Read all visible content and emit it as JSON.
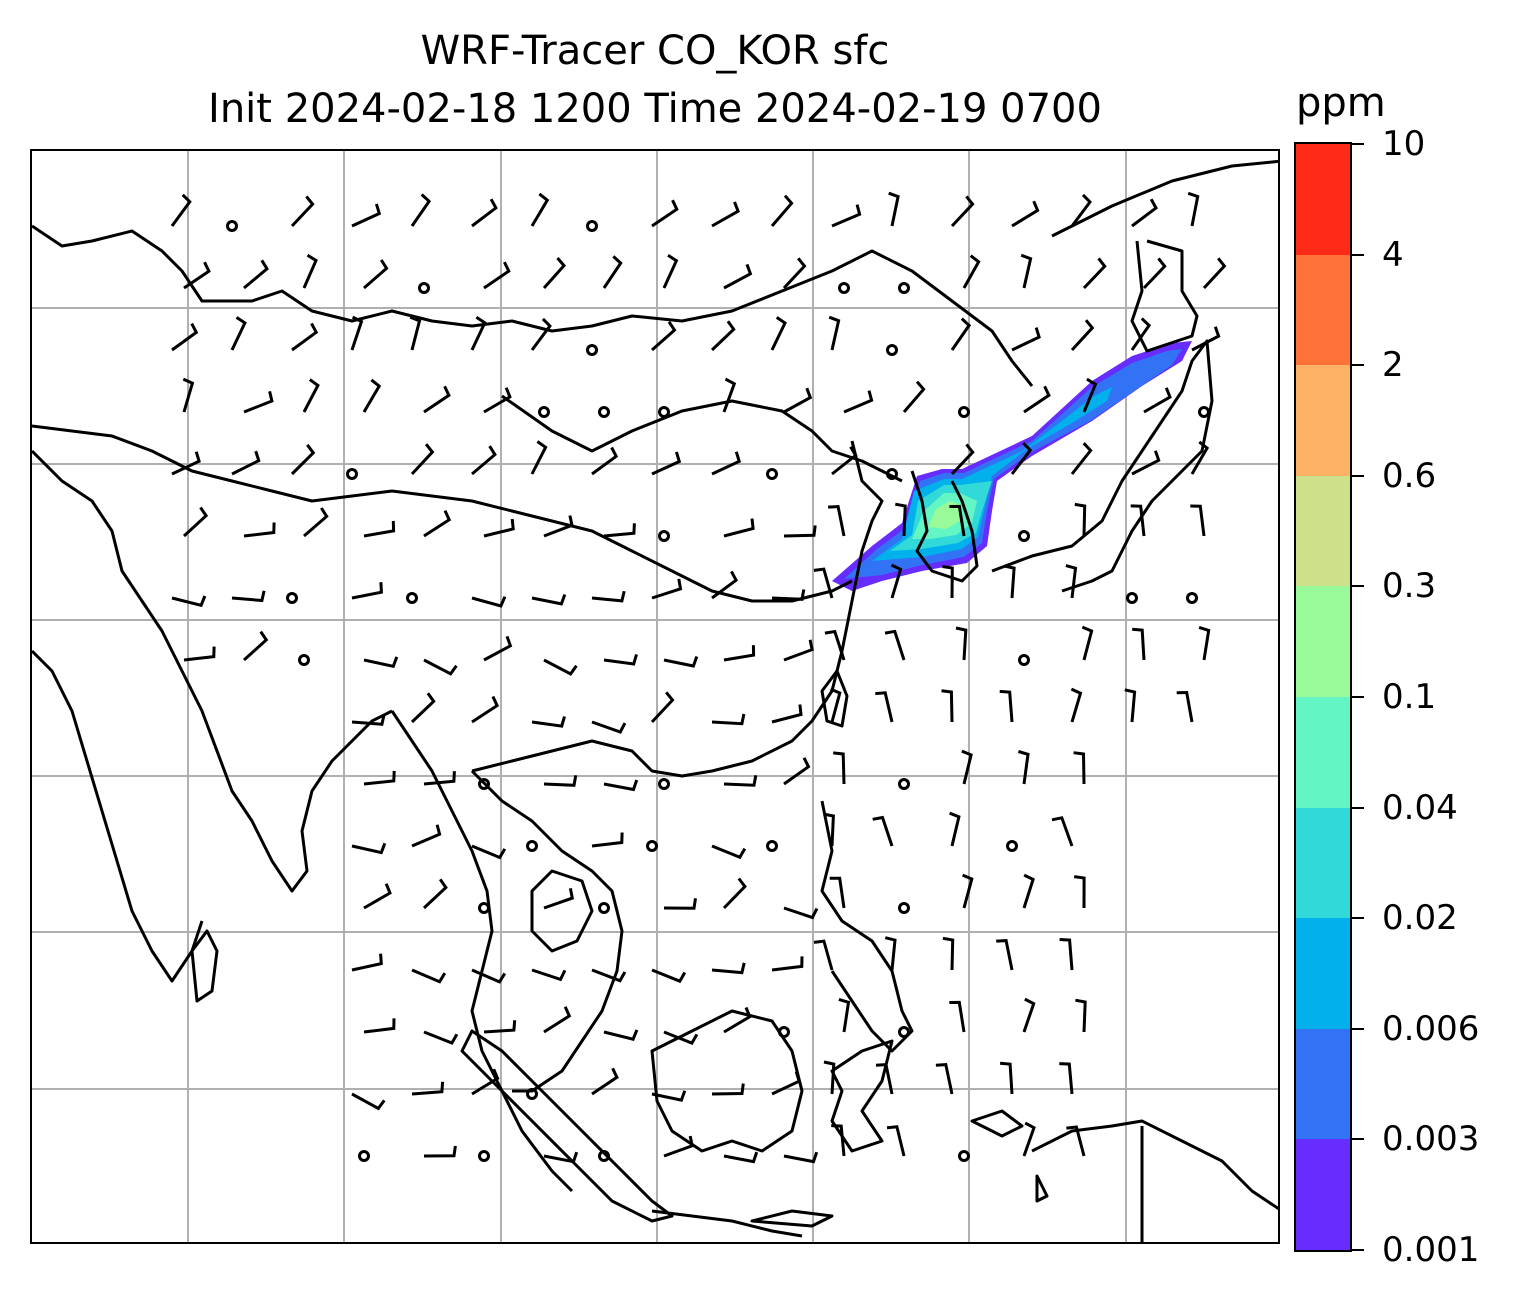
{
  "map": {
    "title_line1": "WRF-Tracer CO_KOR sfc",
    "title_line2": "Init 2024-02-18 1200 Time 2024-02-19 0700",
    "coastline_color": "#000000",
    "gridline_color": "#b0b0b0",
    "plume_levels_present": [
      "0.001",
      "0.003",
      "0.006",
      "0.02",
      "0.04",
      "0.1"
    ],
    "layers": [
      "coastlines",
      "lat-lon gridlines",
      "CO tracer filled contours",
      "wind barbs"
    ]
  },
  "colorbar": {
    "unit": "ppm",
    "levels": [
      "10",
      "4",
      "2",
      "0.6",
      "0.3",
      "0.1",
      "0.04",
      "0.02",
      "0.006",
      "0.003",
      "0.001"
    ],
    "colors": [
      "#ff2a17",
      "#ff7338",
      "#fdb265",
      "#cfe08a",
      "#99fa99",
      "#63f6c4",
      "#31d9d9",
      "#00b1ec",
      "#3273f5",
      "#672cfe"
    ]
  }
}
